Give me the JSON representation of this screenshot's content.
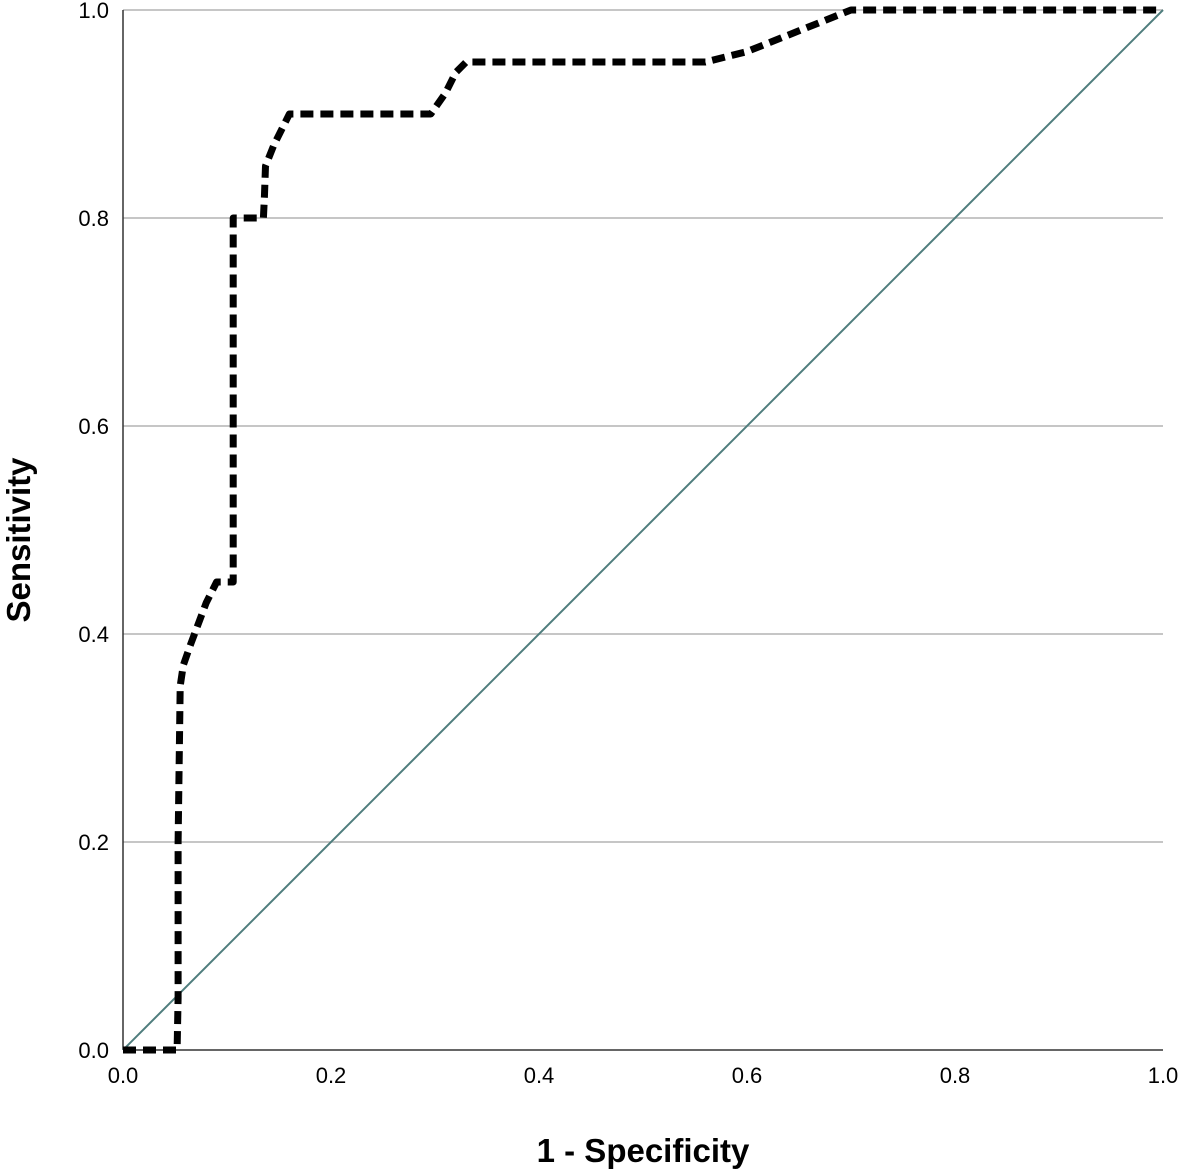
{
  "chart_data": {
    "type": "line",
    "title": "",
    "xlabel": "1 - Specificity",
    "ylabel": "Sensitivity",
    "xlim": [
      0,
      1
    ],
    "ylim": [
      0,
      1
    ],
    "grid": {
      "horizontal": true,
      "vertical": false
    },
    "xticks": [
      "0.0",
      "0.2",
      "0.4",
      "0.6",
      "0.8",
      "1.0"
    ],
    "yticks": [
      "0.0",
      "0.2",
      "0.4",
      "0.6",
      "0.8",
      "1.0"
    ],
    "series": [
      {
        "style": "dashed",
        "color": "#000000",
        "x": [
          0.0,
          0.052,
          0.053,
          0.053,
          0.055,
          0.058,
          0.065,
          0.08,
          0.09,
          0.106,
          0.106,
          0.108,
          0.135,
          0.136,
          0.137,
          0.145,
          0.16,
          0.2,
          0.296,
          0.31,
          0.32,
          0.33,
          0.56,
          0.6,
          0.65,
          0.7,
          0.75,
          1.0
        ],
        "y": [
          0.0,
          0.0,
          0.05,
          0.2,
          0.35,
          0.37,
          0.39,
          0.43,
          0.45,
          0.45,
          0.8,
          0.8,
          0.8,
          0.82,
          0.85,
          0.87,
          0.9,
          0.9,
          0.9,
          0.92,
          0.94,
          0.95,
          0.95,
          0.96,
          0.98,
          1.0,
          1.0,
          1.0
        ]
      },
      {
        "style": "solid",
        "color": "#4f7d7d",
        "x": [
          0.0,
          1.0
        ],
        "y": [
          0.0,
          1.0
        ]
      }
    ]
  }
}
